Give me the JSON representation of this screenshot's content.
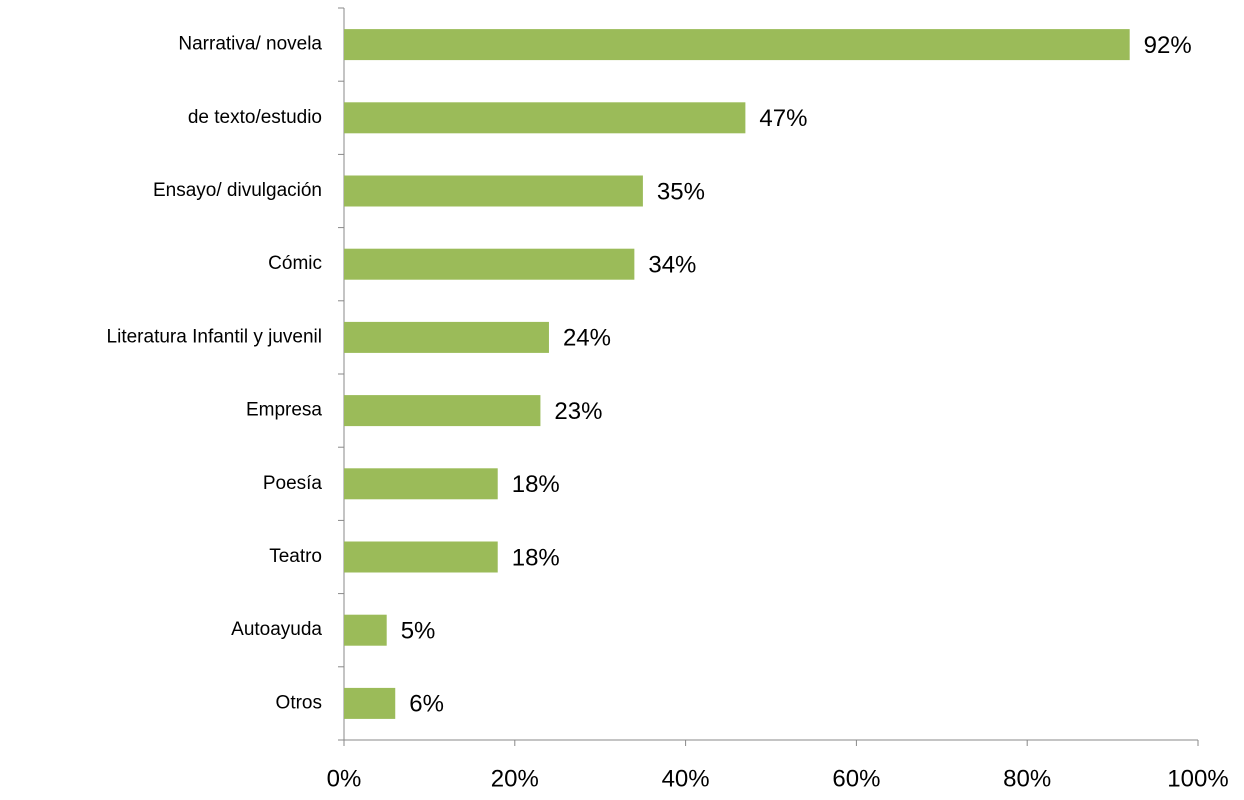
{
  "chart_data": {
    "type": "barh",
    "categories": [
      "Narrativa/ novela",
      "de texto/estudio",
      "Ensayo/ divulgación",
      "Cómic",
      "Literatura Infantil y juvenil",
      "Empresa",
      "Poesía",
      "Teatro",
      "Autoayuda",
      "Otros"
    ],
    "values": [
      92,
      47,
      35,
      34,
      24,
      23,
      18,
      18,
      5,
      6
    ],
    "value_labels": [
      "92%",
      "47%",
      "35%",
      "34%",
      "24%",
      "23%",
      "18%",
      "18%",
      "5%",
      "6%"
    ],
    "color": "#9bbb59",
    "xlim": [
      0,
      100
    ],
    "xticks": [
      {
        "value": 0,
        "label": "0%"
      },
      {
        "value": 20,
        "label": "20%"
      },
      {
        "value": 40,
        "label": "40%"
      },
      {
        "value": 60,
        "label": "60%"
      },
      {
        "value": 80,
        "label": "80%"
      },
      {
        "value": 100,
        "label": "100%"
      }
    ]
  }
}
